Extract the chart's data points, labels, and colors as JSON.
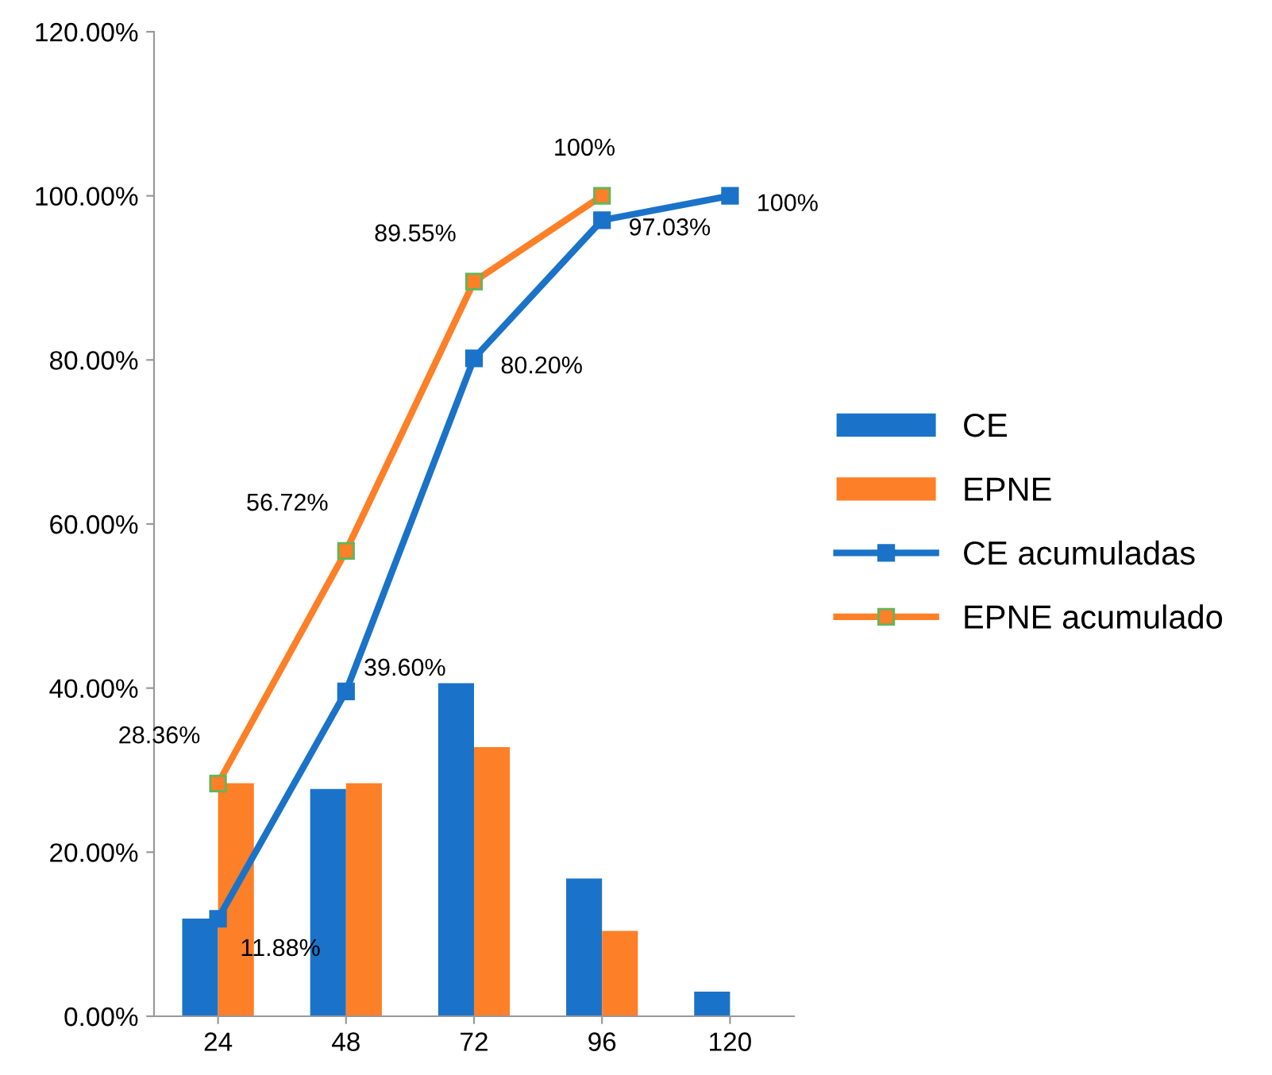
{
  "chart_data": {
    "type": "bar",
    "categories": [
      "24",
      "48",
      "72",
      "96",
      "120"
    ],
    "series": [
      {
        "name": "CE",
        "color": "#1a73c8",
        "values": [
          11.9,
          27.7,
          40.6,
          16.8,
          3.0
        ]
      },
      {
        "name": "EPNE",
        "color": "#fd7f27",
        "values": [
          28.4,
          28.4,
          32.8,
          10.4,
          null
        ]
      },
      {
        "name": "CE acumuladas",
        "type": "line",
        "color": "#1a73c8",
        "marker": "square",
        "values": [
          11.88,
          39.6,
          80.2,
          97.03,
          100
        ],
        "value_labels": [
          "11.88%",
          "39.60%",
          "80.20%",
          "97.03%",
          "100%"
        ]
      },
      {
        "name": "EPNE acumulado",
        "type": "line",
        "color": "#fd7f27",
        "marker": "square",
        "values": [
          28.36,
          56.72,
          89.55,
          100,
          null
        ],
        "value_labels": [
          "28.36%",
          "56.72%",
          "89.55%",
          "100%",
          null
        ]
      }
    ],
    "ylim": [
      0,
      120
    ],
    "yticks": [
      {
        "value": 0,
        "label": "0.00%"
      },
      {
        "value": 20,
        "label": "20.00%"
      },
      {
        "value": 40,
        "label": "40.00%"
      },
      {
        "value": 60,
        "label": "60.00%"
      },
      {
        "value": 80,
        "label": "80.00%"
      },
      {
        "value": 100,
        "label": "100.00%"
      },
      {
        "value": 120,
        "label": "120.00%"
      }
    ],
    "grid": false,
    "legend": "right"
  }
}
